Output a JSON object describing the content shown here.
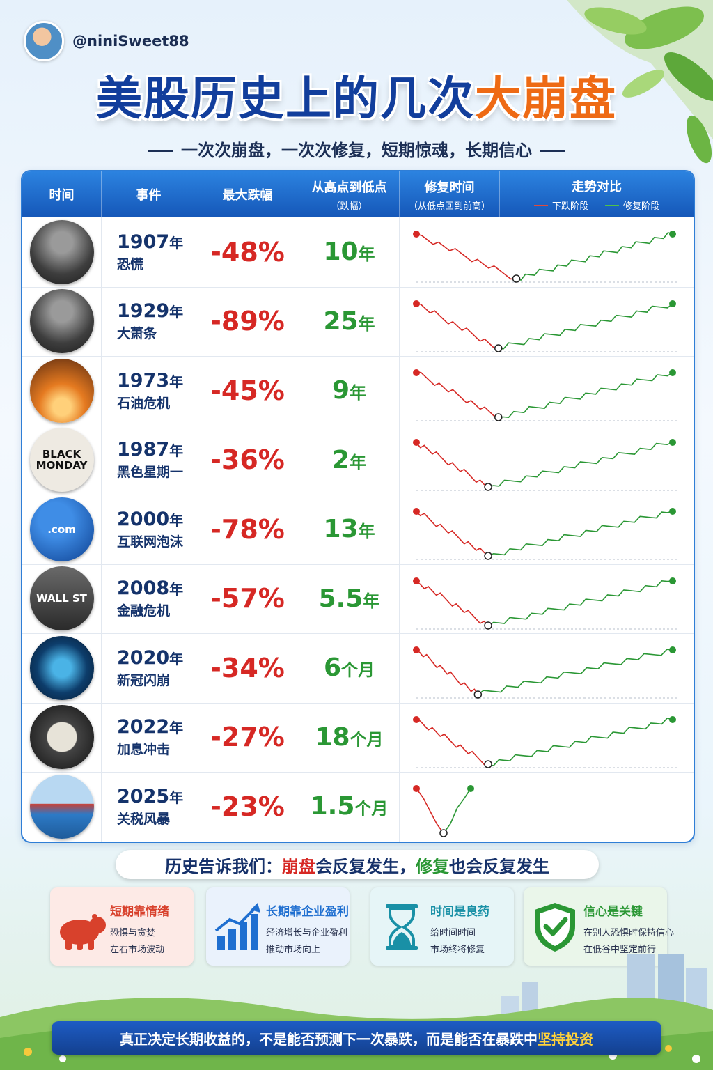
{
  "header": {
    "handle": "@niniSweet88",
    "title_main": "美股历史上的几次",
    "title_highlight": "大崩盘",
    "subtitle": "一次次崩盘，一次次修复，短期惊魂，长期信心"
  },
  "table": {
    "col_time": "时间",
    "col_event": "事件",
    "col_drop": "最大跌幅",
    "col_duration": "从高点到低点",
    "col_duration_sub": "（跌幅）",
    "col_recovery": "修复时间",
    "col_recovery_sub": "（从低点回到前高）",
    "col_trend": "走势对比",
    "legend_down": "下跌阶段",
    "legend_up": "修复阶段"
  },
  "colors": {
    "down": "#d62824",
    "up": "#2a9734",
    "header_blue": "#1c63c6",
    "title_blue": "#123e9c",
    "title_orange": "#ee6a14"
  },
  "chart_data": {
    "type": "table",
    "columns": [
      "事件",
      "最大跌幅",
      "修复时间",
      "走势对比"
    ],
    "rows": [
      {
        "year": "1907",
        "year_unit": "年",
        "name": "恐慌",
        "drop": "-48%",
        "drop_value": -48,
        "recovery_num": "10",
        "recovery_unit": "年",
        "thumb_label": "",
        "thumb_icon": "crowd-photo-icon",
        "low_position": 0.39
      },
      {
        "year": "1929",
        "year_unit": "年",
        "name": "大萧条",
        "drop": "-89%",
        "drop_value": -89,
        "recovery_num": "25",
        "recovery_unit": "年",
        "thumb_label": "",
        "thumb_icon": "crowd-photo-icon",
        "low_position": 0.32
      },
      {
        "year": "1973",
        "year_unit": "年",
        "name": "石油危机",
        "drop": "-45%",
        "drop_value": -45,
        "recovery_num": "9",
        "recovery_unit": "年",
        "thumb_label": "",
        "thumb_icon": "oil-pump-icon",
        "low_position": 0.32
      },
      {
        "year": "1987",
        "year_unit": "年",
        "name": "黑色星期一",
        "drop": "-36%",
        "drop_value": -36,
        "recovery_num": "2",
        "recovery_unit": "年",
        "thumb_label": "BLACK MONDAY",
        "thumb_icon": "newspaper-icon",
        "low_position": 0.28
      },
      {
        "year": "2000",
        "year_unit": "年",
        "name": "互联网泡沫",
        "drop": "-78%",
        "drop_value": -78,
        "recovery_num": "13",
        "recovery_unit": "年",
        "thumb_label": ".com",
        "thumb_icon": "dotcom-icon",
        "low_position": 0.28
      },
      {
        "year": "2008",
        "year_unit": "年",
        "name": "金融危机",
        "drop": "-57%",
        "drop_value": -57,
        "recovery_num": "5.5",
        "recovery_unit": "年",
        "thumb_label": "WALL ST",
        "thumb_icon": "wall-street-sign-icon",
        "low_position": 0.28
      },
      {
        "year": "2020",
        "year_unit": "年",
        "name": "新冠闪崩",
        "drop": "-34%",
        "drop_value": -34,
        "recovery_num": "6",
        "recovery_unit": "个月",
        "thumb_label": "",
        "thumb_icon": "virus-icon",
        "low_position": 0.24
      },
      {
        "year": "2022",
        "year_unit": "年",
        "name": "加息冲击",
        "drop": "-27%",
        "drop_value": -27,
        "recovery_num": "18",
        "recovery_unit": "个月",
        "thumb_label": "",
        "thumb_icon": "fed-seal-icon",
        "low_position": 0.28
      },
      {
        "year": "2025",
        "year_unit": "年",
        "name": "关税风暴",
        "drop": "-23%",
        "drop_value": -23,
        "recovery_num": "1.5",
        "recovery_unit": "个月",
        "thumb_label": "",
        "thumb_icon": "container-ship-icon",
        "low_position": 0.1,
        "short_chart": true
      }
    ]
  },
  "banner": {
    "prefix": "历史告诉我们：",
    "crash": "崩盘",
    "mid": "会反复发生，",
    "repair": "修复",
    "suffix": "也会反复发生"
  },
  "cards": [
    {
      "title": "短期靠情绪",
      "line1": "恐惧与贪婪",
      "line2": "左右市场波动",
      "icon": "bear-icon",
      "color": "#d8412c",
      "bg": "#fdeae6"
    },
    {
      "title": "长期靠企业盈利",
      "line1": "经济增长与企业盈利",
      "line2": "推动市场向上",
      "icon": "growth-chart-icon",
      "color": "#1f6fd0",
      "bg": "#eaf2fc"
    },
    {
      "title": "时间是良药",
      "line1": "给时间时间",
      "line2": "市场终将修复",
      "icon": "hourglass-icon",
      "color": "#1990a6",
      "bg": "#e6f5f7"
    },
    {
      "title": "信心是关键",
      "line1": "在别人恐惧时保持信心",
      "line2": "在低谷中坚定前行",
      "icon": "shield-check-icon",
      "color": "#2a9734",
      "bg": "#eaf6ea"
    }
  ],
  "footer": {
    "text": "真正决定长期收益的，不是能否预测下一次暴跌，而是能否在暴跌中",
    "highlight": "坚持投资"
  }
}
